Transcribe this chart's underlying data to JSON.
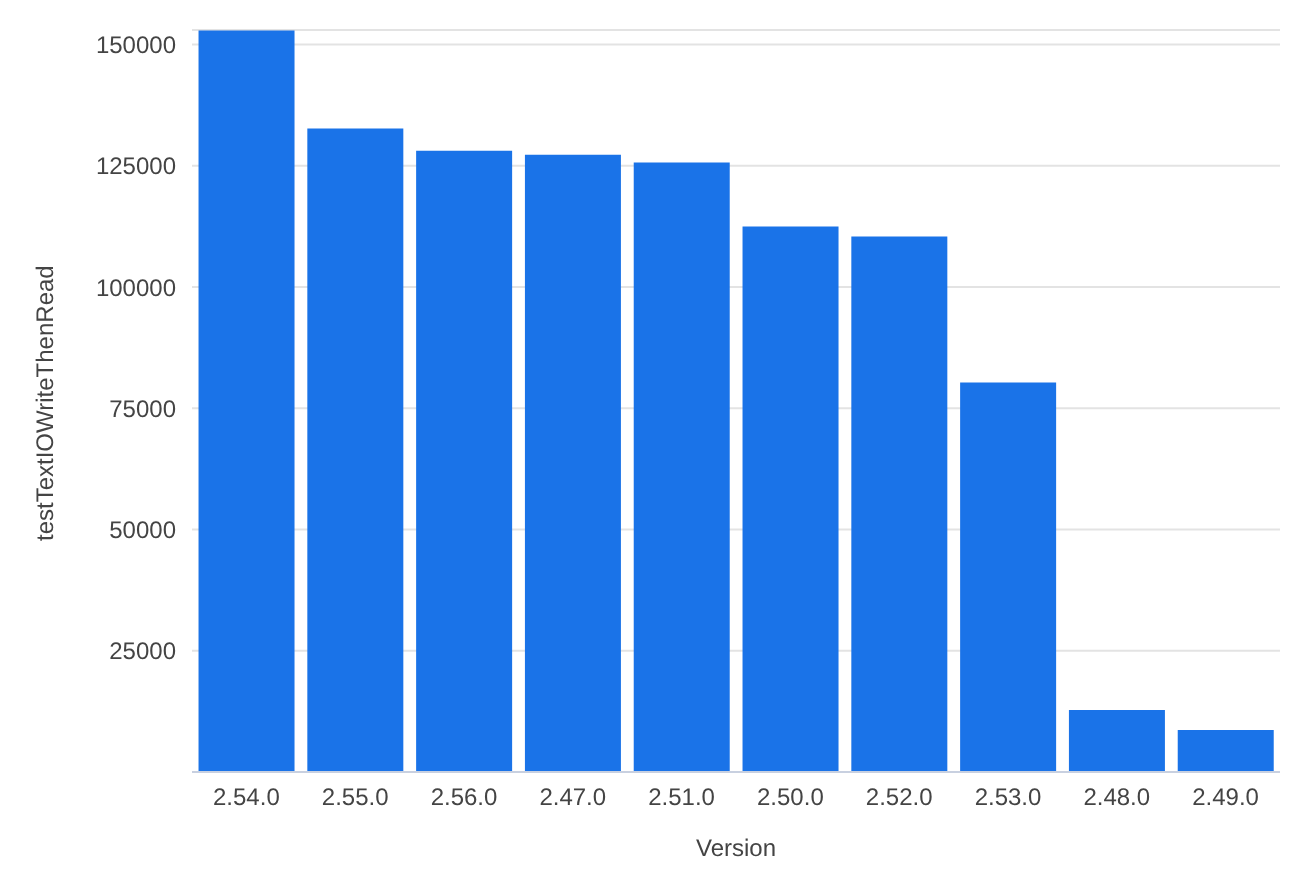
{
  "chart_data": {
    "type": "bar",
    "xlabel": "Version",
    "ylabel": "testTextIOWriteThenRead",
    "categories": [
      "2.54.0",
      "2.55.0",
      "2.56.0",
      "2.47.0",
      "2.51.0",
      "2.50.0",
      "2.52.0",
      "2.53.0",
      "2.48.0",
      "2.49.0"
    ],
    "values": [
      152900,
      132700,
      128100,
      127300,
      125700,
      112500,
      110400,
      80300,
      12800,
      8650
    ],
    "color": "#1a73e8",
    "ylim": [
      0,
      153000
    ],
    "yticks": [
      25000,
      50000,
      75000,
      100000,
      125000,
      150000
    ],
    "grid": "y",
    "legend": false
  }
}
